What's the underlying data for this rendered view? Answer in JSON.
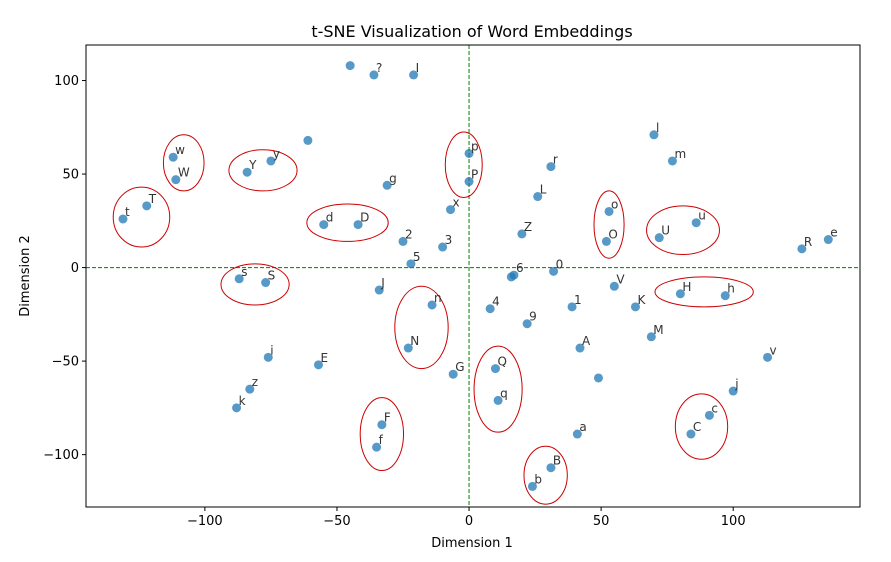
{
  "chart_data": {
    "type": "scatter",
    "title": "t-SNE Visualization of Word Embeddings",
    "xlabel": "Dimension 1",
    "ylabel": "Dimension 2",
    "xlim": [
      -145,
      148
    ],
    "ylim": [
      -128,
      119
    ],
    "xticks": [
      -100,
      -50,
      0,
      50,
      100
    ],
    "yticks": [
      -100,
      -50,
      0,
      50,
      100
    ],
    "xtick_labels": [
      "−100",
      "−50",
      "0",
      "50",
      "100"
    ],
    "ytick_labels": [
      "−100",
      "−50",
      "0",
      "50",
      "100"
    ],
    "grid": false,
    "point_color": "#1f77b4",
    "reference_line_color": "#008000",
    "cluster_color": "#cc0000",
    "reference_lines": [
      {
        "axis": "x",
        "value": 0
      },
      {
        "axis": "y",
        "value": 0
      }
    ],
    "points": [
      {
        "x": -45,
        "y": 108,
        "label": ""
      },
      {
        "x": -36,
        "y": 103,
        "label": "?"
      },
      {
        "x": -21,
        "y": 103,
        "label": "I"
      },
      {
        "x": -61,
        "y": 68,
        "label": ""
      },
      {
        "x": -112,
        "y": 59,
        "label": "w"
      },
      {
        "x": -111,
        "y": 47,
        "label": "W"
      },
      {
        "x": -84,
        "y": 51,
        "label": "Y"
      },
      {
        "x": -75,
        "y": 57,
        "label": "y"
      },
      {
        "x": -131,
        "y": 26,
        "label": "t"
      },
      {
        "x": -122,
        "y": 33,
        "label": "T"
      },
      {
        "x": -31,
        "y": 44,
        "label": "g"
      },
      {
        "x": -55,
        "y": 23,
        "label": "d"
      },
      {
        "x": -42,
        "y": 23,
        "label": "D"
      },
      {
        "x": -25,
        "y": 14,
        "label": "2"
      },
      {
        "x": -22,
        "y": 2,
        "label": "5"
      },
      {
        "x": -10,
        "y": 11,
        "label": "3"
      },
      {
        "x": -7,
        "y": 31,
        "label": "x"
      },
      {
        "x": 0,
        "y": 61,
        "label": "p"
      },
      {
        "x": 0,
        "y": 46,
        "label": "P"
      },
      {
        "x": 31,
        "y": 54,
        "label": "r"
      },
      {
        "x": 26,
        "y": 38,
        "label": "L"
      },
      {
        "x": 20,
        "y": 18,
        "label": "Z"
      },
      {
        "x": 70,
        "y": 71,
        "label": "l"
      },
      {
        "x": 77,
        "y": 57,
        "label": "m"
      },
      {
        "x": 53,
        "y": 30,
        "label": "o"
      },
      {
        "x": 52,
        "y": 14,
        "label": "O"
      },
      {
        "x": 72,
        "y": 16,
        "label": "U"
      },
      {
        "x": 86,
        "y": 24,
        "label": "u"
      },
      {
        "x": 126,
        "y": 10,
        "label": "R"
      },
      {
        "x": 136,
        "y": 15,
        "label": "e"
      },
      {
        "x": 17,
        "y": -4,
        "label": "6"
      },
      {
        "x": 16,
        "y": -5,
        "label": ""
      },
      {
        "x": 32,
        "y": -2,
        "label": "0"
      },
      {
        "x": -87,
        "y": -6,
        "label": "s"
      },
      {
        "x": -77,
        "y": -8,
        "label": "S"
      },
      {
        "x": -34,
        "y": -12,
        "label": "J"
      },
      {
        "x": -14,
        "y": -20,
        "label": "n"
      },
      {
        "x": 8,
        "y": -22,
        "label": "4"
      },
      {
        "x": 22,
        "y": -30,
        "label": "9"
      },
      {
        "x": 39,
        "y": -21,
        "label": "1"
      },
      {
        "x": 55,
        "y": -10,
        "label": "V"
      },
      {
        "x": 63,
        "y": -21,
        "label": "K"
      },
      {
        "x": 80,
        "y": -14,
        "label": "H"
      },
      {
        "x": 97,
        "y": -15,
        "label": "h"
      },
      {
        "x": 69,
        "y": -37,
        "label": "M"
      },
      {
        "x": 42,
        "y": -43,
        "label": "A"
      },
      {
        "x": -23,
        "y": -43,
        "label": "N"
      },
      {
        "x": -76,
        "y": -48,
        "label": "i"
      },
      {
        "x": -57,
        "y": -52,
        "label": "E"
      },
      {
        "x": -6,
        "y": -57,
        "label": "G"
      },
      {
        "x": 10,
        "y": -54,
        "label": "Q"
      },
      {
        "x": 11,
        "y": -71,
        "label": "q"
      },
      {
        "x": 49,
        "y": -59,
        "label": ""
      },
      {
        "x": 113,
        "y": -48,
        "label": "v"
      },
      {
        "x": 100,
        "y": -66,
        "label": "j"
      },
      {
        "x": -83,
        "y": -65,
        "label": "z"
      },
      {
        "x": -88,
        "y": -75,
        "label": "k"
      },
      {
        "x": -33,
        "y": -84,
        "label": "F"
      },
      {
        "x": -35,
        "y": -96,
        "label": "f"
      },
      {
        "x": 41,
        "y": -89,
        "label": "a"
      },
      {
        "x": 91,
        "y": -79,
        "label": "c"
      },
      {
        "x": 84,
        "y": -89,
        "label": "C"
      },
      {
        "x": 31,
        "y": -107,
        "label": "B"
      },
      {
        "x": 24,
        "y": -117,
        "label": "b"
      }
    ],
    "cluster_ellipses": [
      {
        "cx": -108,
        "cy": 56,
        "rx": 7.7,
        "ry": 15
      },
      {
        "cx": -78,
        "cy": 52,
        "rx": 12.9,
        "ry": 11
      },
      {
        "cx": -124,
        "cy": 27,
        "rx": 10.7,
        "ry": 16
      },
      {
        "cx": -46,
        "cy": 24,
        "rx": 15.4,
        "ry": 10
      },
      {
        "cx": -2,
        "cy": 55,
        "rx": 7.0,
        "ry": 17.5
      },
      {
        "cx": 53,
        "cy": 23,
        "rx": 5.7,
        "ry": 18
      },
      {
        "cx": 81,
        "cy": 20,
        "rx": 13.8,
        "ry": 13
      },
      {
        "cx": -81,
        "cy": -9,
        "rx": 12.9,
        "ry": 11
      },
      {
        "cx": -18,
        "cy": -32,
        "rx": 10.1,
        "ry": 22
      },
      {
        "cx": 89,
        "cy": -13,
        "rx": 18.6,
        "ry": 8
      },
      {
        "cx": 11,
        "cy": -65,
        "rx": 9.1,
        "ry": 23
      },
      {
        "cx": -33,
        "cy": -89,
        "rx": 8.2,
        "ry": 19.5
      },
      {
        "cx": 88,
        "cy": -85,
        "rx": 9.9,
        "ry": 17.5
      },
      {
        "cx": 29,
        "cy": -111,
        "rx": 8.2,
        "ry": 15.5
      }
    ]
  }
}
